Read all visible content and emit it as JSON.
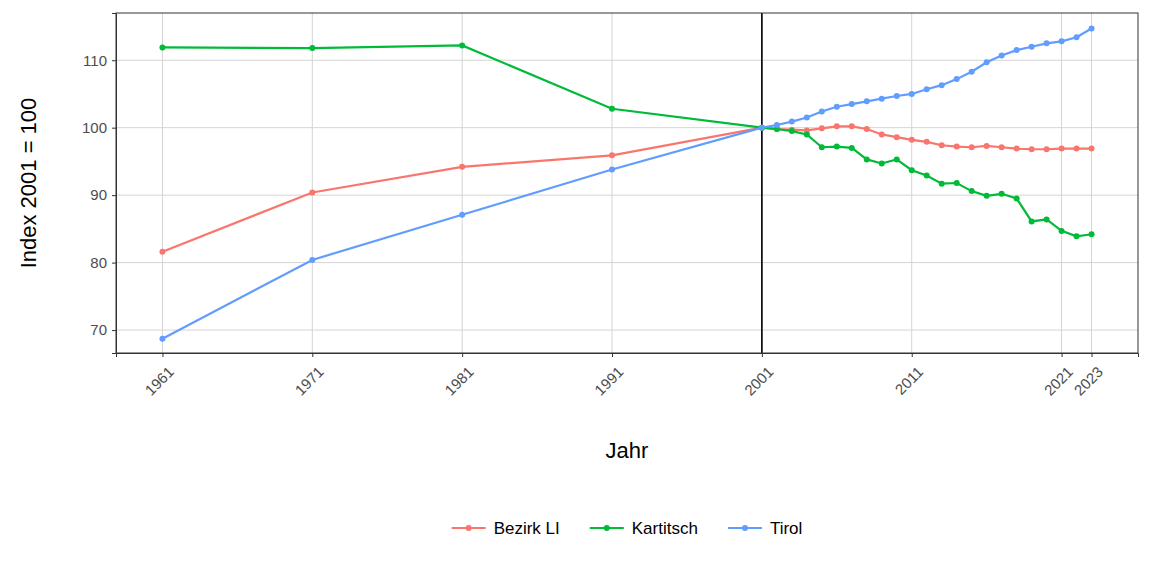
{
  "chart_data": {
    "type": "line",
    "x_label": "Jahr",
    "y_label": "Index 2001 = 100",
    "x": [
      1961,
      1971,
      1981,
      1991,
      2001,
      2002,
      2003,
      2004,
      2005,
      2006,
      2007,
      2008,
      2009,
      2010,
      2011,
      2012,
      2013,
      2014,
      2015,
      2016,
      2017,
      2018,
      2019,
      2020,
      2021,
      2022,
      2023
    ],
    "series": [
      {
        "name": "Bezirk LI",
        "color": "#F8766D",
        "values": [
          81.6,
          90.4,
          94.2,
          95.9,
          100.0,
          99.8,
          99.7,
          99.6,
          99.9,
          100.2,
          100.2,
          99.8,
          99.0,
          98.6,
          98.2,
          97.9,
          97.4,
          97.2,
          97.1,
          97.3,
          97.1,
          96.9,
          96.8,
          96.8,
          96.9,
          96.9,
          96.9
        ]
      },
      {
        "name": "Kartitsch",
        "color": "#00BA38",
        "values": [
          111.9,
          111.8,
          112.2,
          102.8,
          100.0,
          99.8,
          99.5,
          99.0,
          97.1,
          97.2,
          97.0,
          95.3,
          94.7,
          95.3,
          93.7,
          92.9,
          91.7,
          91.8,
          90.6,
          89.9,
          90.2,
          89.5,
          86.1,
          86.4,
          84.7,
          83.9,
          84.2
        ]
      },
      {
        "name": "Tirol",
        "color": "#619CFF",
        "values": [
          68.7,
          80.4,
          87.1,
          93.8,
          100.0,
          100.4,
          100.9,
          101.5,
          102.4,
          103.1,
          103.5,
          103.9,
          104.3,
          104.7,
          105.0,
          105.7,
          106.3,
          107.2,
          108.3,
          109.7,
          110.7,
          111.5,
          112.0,
          112.5,
          112.8,
          113.4,
          114.7
        ]
      }
    ],
    "xlim": [
      1957.9,
      2026.1
    ],
    "xticks": [
      1961,
      1971,
      1981,
      1991,
      2001,
      2011,
      2021,
      2023
    ],
    "ylim": [
      66.6,
      117.0
    ],
    "yticks": [
      70,
      80,
      90,
      100,
      110
    ],
    "vline": 2001,
    "grid": true,
    "legend": "bottom",
    "marker": "circle",
    "line_style": "solid"
  }
}
